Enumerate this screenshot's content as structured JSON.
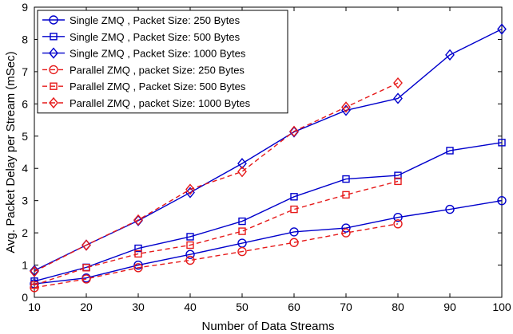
{
  "chart_data": {
    "type": "line",
    "xlabel": "Number of Data Streams",
    "ylabel": "Avg. Packet Delay per Stream (mSec)",
    "xlim": [
      10,
      100
    ],
    "ylim": [
      0,
      9
    ],
    "xticks": [
      10,
      20,
      30,
      40,
      50,
      60,
      70,
      80,
      90,
      100
    ],
    "yticks": [
      0,
      1,
      2,
      3,
      4,
      5,
      6,
      7,
      8,
      9
    ],
    "grid": false,
    "legend_position": "top-left",
    "series": [
      {
        "name": "Single ZMQ , Packet Size: 250 Bytes",
        "color": "#0000cc",
        "line_style": "solid",
        "marker": "circle",
        "x": [
          10,
          20,
          30,
          40,
          50,
          60,
          70,
          80,
          90,
          100
        ],
        "y": [
          0.42,
          0.6,
          1.0,
          1.33,
          1.68,
          2.03,
          2.15,
          2.48,
          2.73,
          3.0
        ]
      },
      {
        "name": "Single ZMQ , Packet Size: 500 Bytes",
        "color": "#0000cc",
        "line_style": "solid",
        "marker": "square",
        "x": [
          10,
          20,
          30,
          40,
          50,
          60,
          70,
          80,
          90,
          100
        ],
        "y": [
          0.5,
          0.93,
          1.52,
          1.88,
          2.36,
          3.12,
          3.67,
          3.78,
          4.55,
          4.8
        ]
      },
      {
        "name": "Single ZMQ , Packet Size: 1000 Bytes",
        "color": "#0000cc",
        "line_style": "solid",
        "marker": "diamond",
        "x": [
          10,
          20,
          30,
          40,
          50,
          60,
          70,
          80,
          90,
          100
        ],
        "y": [
          0.83,
          1.62,
          2.38,
          3.25,
          4.15,
          5.13,
          5.8,
          6.17,
          7.52,
          8.32
        ]
      },
      {
        "name": "Parallel ZMQ , packet Size: 250 Bytes",
        "color": "#e61a1a",
        "line_style": "dashed",
        "marker": "circle",
        "x": [
          10,
          20,
          30,
          40,
          50,
          60,
          70,
          80
        ],
        "y": [
          0.3,
          0.57,
          0.92,
          1.15,
          1.42,
          1.7,
          2.0,
          2.28
        ]
      },
      {
        "name": "Parallel ZMQ , Packet Size: 500 Bytes",
        "color": "#e61a1a",
        "line_style": "dashed",
        "marker": "square",
        "x": [
          10,
          20,
          30,
          40,
          50,
          60,
          70,
          80
        ],
        "y": [
          0.38,
          0.92,
          1.35,
          1.62,
          2.05,
          2.73,
          3.18,
          3.6
        ]
      },
      {
        "name": "Parallel ZMQ , packet Size: 1000 Bytes",
        "color": "#e61a1a",
        "line_style": "dashed",
        "marker": "diamond",
        "x": [
          10,
          20,
          30,
          40,
          50,
          60,
          70,
          80
        ],
        "y": [
          0.8,
          1.62,
          2.4,
          3.35,
          3.9,
          5.15,
          5.9,
          6.65
        ]
      }
    ]
  }
}
